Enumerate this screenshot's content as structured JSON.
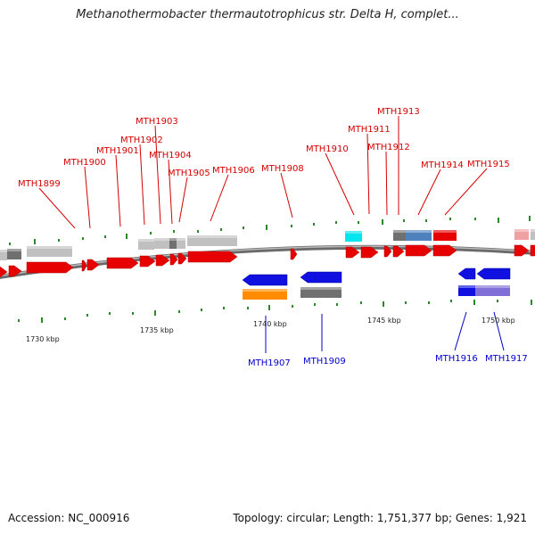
{
  "title": "Methanothermobacter thermautotrophicus str. Delta H, complet...",
  "footer": {
    "accession": "Accession: NC_000916",
    "topology": "Topology: circular; Length: 1,751,377 bp; Genes: 1,921"
  },
  "colors": {
    "forward_gene": "#e60000",
    "reverse_gene": "#1010e0",
    "top_label": "#d60000",
    "bottom_label": "#0000cc",
    "backbone": "#808080",
    "tick": "#2a8a2a",
    "cog_light": "#c0c0c0",
    "cog_dark": "#707070",
    "cog_cyan": "#00e5ee",
    "cog_steel": "#4f81bd",
    "cog_orange": "#ff8c00",
    "cog_purple": "#7f6fd6"
  },
  "top_genes": [
    "MTH1899",
    "MTH1900",
    "MTH1901",
    "MTH1902",
    "MTH1903",
    "MTH1904",
    "MTH1905",
    "MTH1906",
    "MTH1908",
    "MTH1910",
    "MTH1911",
    "MTH1912",
    "MTH1913",
    "MTH1914",
    "MTH1915"
  ],
  "bottom_genes": [
    "MTH1907",
    "MTH1909",
    "MTH1916",
    "MTH1917"
  ],
  "kbp_labels": [
    "1730 kbp",
    "1735 kbp",
    "1740 kbp",
    "1745 kbp",
    "1750 kbp"
  ]
}
